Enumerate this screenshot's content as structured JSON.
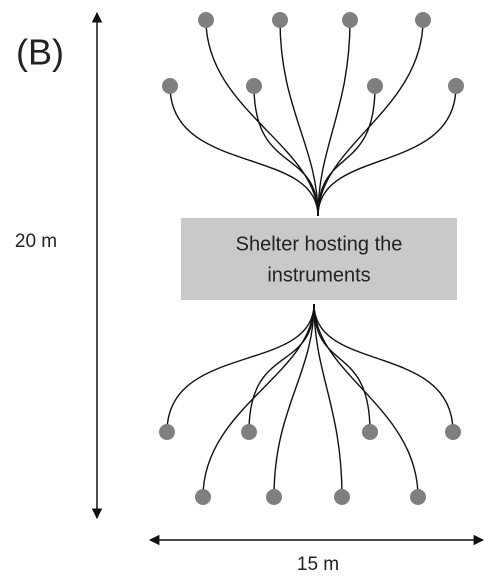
{
  "label": "(B)",
  "height_label": "20 m",
  "width_label": "15 m",
  "shelter": {
    "lines": [
      "Shelter hosting the",
      "instruments"
    ]
  }
}
